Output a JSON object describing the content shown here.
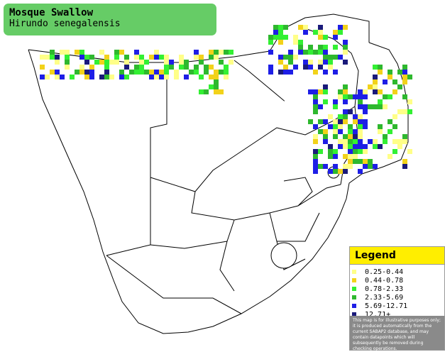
{
  "header": {
    "title": "Mosque Swallow",
    "subtitle": "Hirundo senegalensis"
  },
  "legend": {
    "title": "Legend",
    "items": [
      {
        "label": "0.25-0.44",
        "color": "#ffff88"
      },
      {
        "label": "0.44-0.78",
        "color": "#f2d21a"
      },
      {
        "label": "0.78-2.33",
        "color": "#33f033"
      },
      {
        "label": "2.33-5.69",
        "color": "#2eb82e"
      },
      {
        "label": "5.69-12.71",
        "color": "#1e1ee6"
      },
      {
        "label": "12.71+",
        "color": "#1a1a7a"
      }
    ],
    "note": "This map is for illustrative purposes only; it is produced automatically from the current SABAP2 database, and may contain datapoints which will subsequently be removed during checking operations."
  }
}
